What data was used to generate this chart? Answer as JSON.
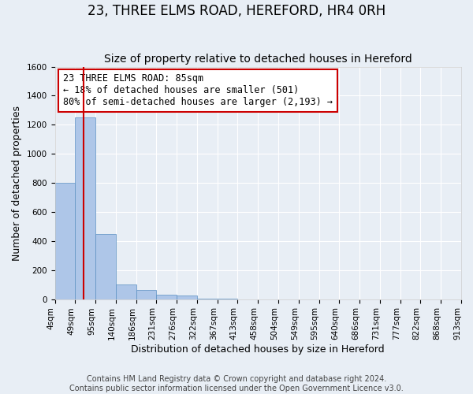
{
  "title": "23, THREE ELMS ROAD, HEREFORD, HR4 0RH",
  "subtitle": "Size of property relative to detached houses in Hereford",
  "xlabel": "Distribution of detached houses by size in Hereford",
  "ylabel": "Number of detached properties",
  "bin_labels": [
    "4sqm",
    "49sqm",
    "95sqm",
    "140sqm",
    "186sqm",
    "231sqm",
    "276sqm",
    "322sqm",
    "367sqm",
    "413sqm",
    "458sqm",
    "504sqm",
    "549sqm",
    "595sqm",
    "640sqm",
    "686sqm",
    "731sqm",
    "777sqm",
    "822sqm",
    "868sqm",
    "913sqm"
  ],
  "bar_heights": [
    800,
    1250,
    450,
    100,
    65,
    30,
    25,
    5,
    3,
    0,
    0,
    0,
    0,
    0,
    0,
    0,
    0,
    0,
    0,
    0
  ],
  "bar_color": "#aec6e8",
  "bar_edge_color": "#5a8fc2",
  "property_line_x": 1.42,
  "property_line_color": "#cc0000",
  "annotation_text": "23 THREE ELMS ROAD: 85sqm\n← 18% of detached houses are smaller (501)\n80% of semi-detached houses are larger (2,193) →",
  "annotation_box_color": "white",
  "annotation_box_edge_color": "#cc0000",
  "ylim": [
    0,
    1600
  ],
  "yticks": [
    0,
    200,
    400,
    600,
    800,
    1000,
    1200,
    1400,
    1600
  ],
  "footer_line1": "Contains HM Land Registry data © Crown copyright and database right 2024.",
  "footer_line2": "Contains public sector information licensed under the Open Government Licence v3.0.",
  "background_color": "#e8eef5",
  "plot_bg_color": "#e8eef5",
  "grid_color": "white",
  "title_fontsize": 12,
  "subtitle_fontsize": 10,
  "axis_label_fontsize": 9,
  "tick_fontsize": 7.5,
  "annotation_fontsize": 8.5,
  "footer_fontsize": 7
}
